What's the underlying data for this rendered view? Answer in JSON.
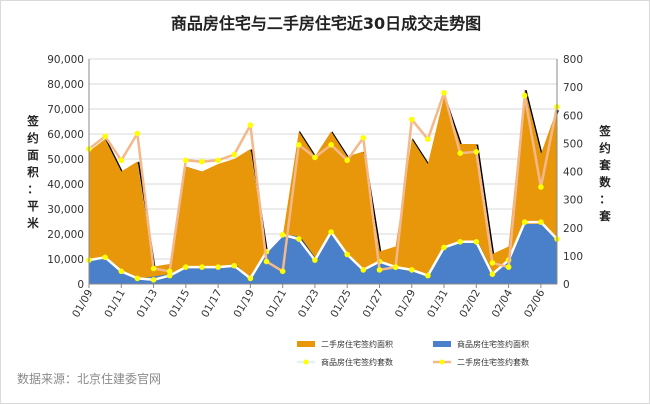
{
  "chart_data": {
    "type": "area",
    "title": "商品房住宅与二手房住宅近30日成交走势图",
    "ylabel_left": "签约面积：平米",
    "ylabel_right": "签约套数：套",
    "source": "数据来源：北京住建委官网",
    "x": [
      "01/09",
      "01/10",
      "01/11",
      "01/12",
      "01/13",
      "01/14",
      "01/15",
      "01/16",
      "01/17",
      "01/18",
      "01/19",
      "01/20",
      "01/21",
      "01/22",
      "01/23",
      "01/24",
      "01/25",
      "01/26",
      "01/27",
      "01/28",
      "01/29",
      "01/30",
      "01/31",
      "02/01",
      "02/02",
      "02/03",
      "02/04",
      "02/05",
      "02/06",
      "02/07"
    ],
    "x_tick_labels": [
      "01/09",
      "01/11",
      "01/13",
      "01/15",
      "01/17",
      "01/19",
      "01/21",
      "01/23",
      "01/25",
      "01/27",
      "01/29",
      "01/31",
      "02/02",
      "02/04",
      "02/06"
    ],
    "ylim_left": [
      0,
      90000
    ],
    "yticks_left": [
      "0",
      "10,000",
      "20,000",
      "30,000",
      "40,000",
      "50,000",
      "60,000",
      "70,000",
      "80,000",
      "90,000"
    ],
    "ylim_right": [
      0,
      800
    ],
    "yticks_right": [
      "0",
      "100",
      "200",
      "300",
      "400",
      "500",
      "600",
      "700",
      "800"
    ],
    "series": [
      {
        "name": "二手房住宅签约面积",
        "type": "area",
        "axis": "left",
        "color": "#e8960a",
        "values": [
          53000,
          58000,
          45000,
          49000,
          7000,
          8000,
          47000,
          45000,
          48000,
          50000,
          54000,
          12000,
          19000,
          61000,
          51000,
          61000,
          51000,
          53000,
          13000,
          15000,
          58000,
          48000,
          75000,
          56000,
          56000,
          12000,
          15000,
          78000,
          52000,
          70000
        ]
      },
      {
        "name": "商品房住宅签约面积",
        "type": "area",
        "axis": "left",
        "color": "#4a7fc9",
        "values": [
          9500,
          11000,
          5000,
          2000,
          3000,
          4000,
          7000,
          7000,
          7000,
          8000,
          2000,
          13000,
          20000,
          19000,
          10000,
          20000,
          11000,
          6000,
          9000,
          7000,
          6000,
          3000,
          15000,
          17000,
          17000,
          4000,
          10000,
          24000,
          24000,
          18000
        ]
      },
      {
        "name": "商品房住宅签约套数",
        "type": "line",
        "axis": "right",
        "color": "#ffffff",
        "values": [
          85,
          95,
          45,
          20,
          15,
          30,
          60,
          60,
          60,
          65,
          20,
          115,
          175,
          160,
          85,
          185,
          105,
          50,
          80,
          60,
          50,
          30,
          130,
          150,
          150,
          35,
          85,
          220,
          220,
          160
        ]
      },
      {
        "name": "二手房住宅签约套数",
        "type": "line",
        "axis": "right",
        "color": "#f5b88a",
        "values": [
          480,
          525,
          440,
          535,
          55,
          45,
          440,
          435,
          440,
          460,
          565,
          80,
          45,
          495,
          450,
          495,
          440,
          520,
          50,
          60,
          585,
          515,
          680,
          465,
          470,
          75,
          60,
          670,
          345,
          630
        ]
      }
    ],
    "grid": true,
    "legend_position": "bottom"
  },
  "colors": {
    "area_secondhand": "#e8960a",
    "area_secondhand_edge": "#000000",
    "area_new": "#4a7fc9",
    "line_new_count": "#ffffff",
    "line_secondhand_count": "#f5b88a",
    "marker": "#ffff00"
  }
}
